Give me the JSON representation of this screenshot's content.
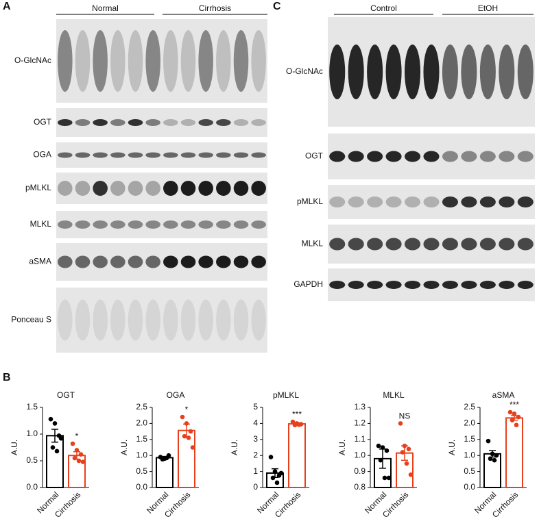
{
  "panel_a": {
    "label": "A",
    "groups": [
      "Normal",
      "Cirrhosis"
    ],
    "rows": [
      "O-GlcNAc",
      "OGT",
      "OGA",
      "pMLKL",
      "MLKL",
      "aSMA",
      "Ponceau S"
    ]
  },
  "panel_b": {
    "label": "B"
  },
  "panel_c": {
    "label": "C",
    "groups": [
      "Control",
      "EtOH"
    ],
    "rows": [
      "O-GlcNAc",
      "OGT",
      "pMLKL",
      "MLKL",
      "GAPDH"
    ]
  },
  "chart_data": [
    {
      "type": "bar",
      "title": "OGT",
      "y_label": "A.U.",
      "categories": [
        "Normal",
        "Cirrhosis"
      ],
      "colors": [
        "#000000",
        "#e8401c"
      ],
      "values": [
        0.97,
        0.6
      ],
      "errors": [
        0.12,
        0.07
      ],
      "points": [
        [
          1.28,
          1.2,
          0.97,
          0.75,
          0.68,
          0.92
        ],
        [
          0.82,
          0.7,
          0.62,
          0.55,
          0.5,
          0.48
        ]
      ],
      "annotation": "*",
      "ylim": [
        0,
        1.5
      ],
      "yticks": [
        {
          "value": 0,
          "label": "0.0"
        },
        0.5,
        {
          "value": 1,
          "label": "1.0"
        },
        1.5
      ]
    },
    {
      "type": "bar",
      "title": "OGA",
      "y_label": "A.U.",
      "categories": [
        "Normal",
        "Cirrhosis"
      ],
      "colors": [
        "#000000",
        "#e8401c"
      ],
      "values": [
        0.93,
        1.78
      ],
      "errors": [
        0.04,
        0.2
      ],
      "points": [
        [
          0.95,
          0.9,
          1.0,
          0.88,
          0.92
        ],
        [
          2.2,
          2.0,
          1.75,
          1.6,
          1.55,
          1.25
        ]
      ],
      "annotation": "*",
      "ylim": [
        0,
        2.5
      ],
      "yticks": [
        {
          "value": 0,
          "label": "0.0"
        },
        0.5,
        {
          "value": 1,
          "label": "1.0"
        },
        1.5,
        {
          "value": 2,
          "label": "2.0"
        },
        2.5
      ]
    },
    {
      "type": "bar",
      "title": "pMLKL",
      "y_label": "A.U.",
      "categories": [
        "Normal",
        "Cirrhosis"
      ],
      "colors": [
        "#000000",
        "#e8401c"
      ],
      "values": [
        0.9,
        3.97
      ],
      "errors": [
        0.27,
        0.07
      ],
      "points": [
        [
          1.9,
          1.0,
          0.75,
          0.6,
          0.3,
          0.9
        ],
        [
          4.1,
          4.0,
          3.95,
          3.9,
          3.92
        ]
      ],
      "annotation": "***",
      "ylim": [
        0,
        5
      ],
      "yticks": [
        0,
        1,
        2,
        3,
        4,
        5
      ]
    },
    {
      "type": "bar",
      "title": "MLKL",
      "y_label": "A.U.",
      "categories": [
        "Normal",
        "Cirrhosis"
      ],
      "colors": [
        "#000000",
        "#e8401c"
      ],
      "values": [
        0.98,
        1.015
      ],
      "errors": [
        0.06,
        0.045
      ],
      "points": [
        [
          1.06,
          1.05,
          1.03,
          0.97,
          0.86,
          0.86
        ],
        [
          1.2,
          1.06,
          1.04,
          1.02,
          0.95,
          0.88
        ]
      ],
      "annotation": "NS",
      "ylim": [
        0.8,
        1.3
      ],
      "yticks": [
        0.8,
        0.9,
        {
          "value": 1,
          "label": "1.0"
        },
        1.1,
        1.2,
        1.3
      ]
    },
    {
      "type": "bar",
      "title": "aSMA",
      "y_label": "A.U.",
      "categories": [
        "Normal",
        "Cirrhosis"
      ],
      "colors": [
        "#000000",
        "#e8401c"
      ],
      "values": [
        1.05,
        2.17
      ],
      "errors": [
        0.1,
        0.07
      ],
      "points": [
        [
          1.45,
          1.05,
          1.0,
          0.9,
          0.85
        ],
        [
          2.35,
          2.3,
          2.2,
          2.1,
          1.95
        ]
      ],
      "annotation": "***",
      "ylim": [
        0,
        2.5
      ],
      "yticks": [
        {
          "value": 0,
          "label": "0.0"
        },
        0.5,
        {
          "value": 1,
          "label": "1.0"
        },
        1.5,
        {
          "value": 2,
          "label": "2.0"
        },
        2.5
      ]
    }
  ]
}
